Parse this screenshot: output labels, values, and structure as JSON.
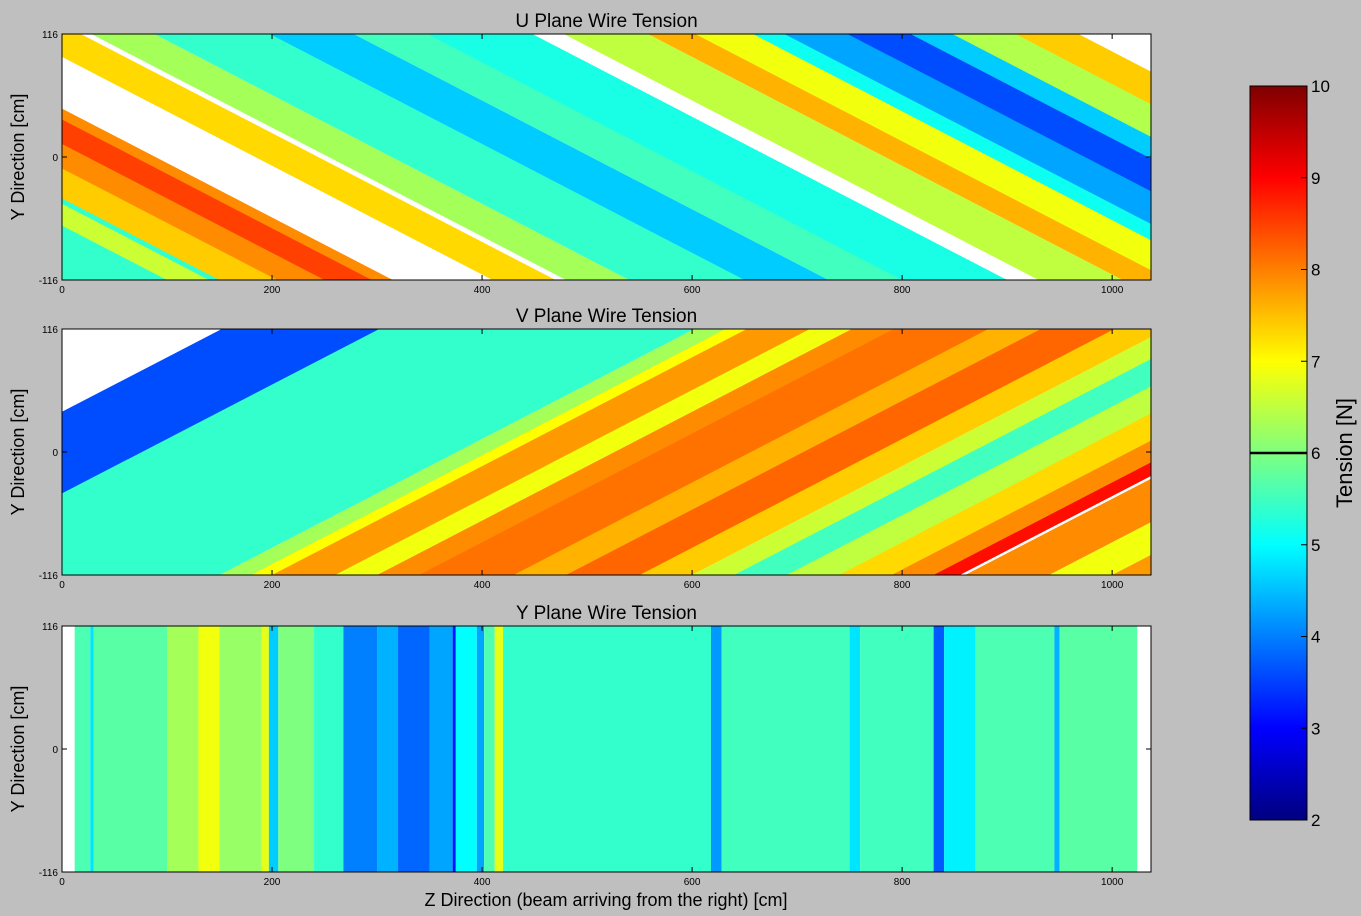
{
  "figure": {
    "xlabel": "Z Direction (beam arriving from the right) [cm]",
    "colorbar": {
      "label": "Tension [N]",
      "min": 2,
      "max": 10,
      "ticks": [
        2,
        3,
        4,
        5,
        6,
        7,
        8,
        9,
        10
      ],
      "marker_value": 6,
      "colormap": "jet",
      "colors": {
        "jet": [
          "#00007f",
          "#0000ff",
          "#007fff",
          "#00ffff",
          "#7fff7f",
          "#ffff00",
          "#ff7f00",
          "#ff0000",
          "#7f0000"
        ]
      }
    }
  },
  "chart_data": [
    {
      "type": "heatmap",
      "title": "U Plane Wire Tension",
      "xlabel": "",
      "ylabel": "Y Direction [cm]",
      "xlim": [
        0,
        1037
      ],
      "ylim": [
        -116,
        116
      ],
      "xticks": [
        0,
        200,
        400,
        600,
        800,
        1000
      ],
      "yticks": [
        -116,
        0,
        116
      ],
      "wire_orientation": "diagonal, +60 degrees",
      "wire_extent_z": [
        0,
        1037
      ],
      "bands": [
        {
          "z_at_y_min": -210,
          "width_cm": 14,
          "value": 3.9
        },
        {
          "z_at_y_min": -150,
          "width_cm": 340,
          "value": 5.4
        },
        {
          "z_at_y_min": 100,
          "width_cm": 40,
          "value": 6.6
        },
        {
          "z_at_y_min": 150,
          "width_cm": 60,
          "value": 7.4
        },
        {
          "z_at_y_min": 205,
          "width_cm": 110,
          "value": 7.9
        },
        {
          "z_at_y_min": 250,
          "width_cm": 45,
          "value": 8.5
        },
        {
          "z_at_y_min": 410,
          "width_cm": 60,
          "value": 7.3
        },
        {
          "z_at_y_min": 480,
          "width_cm": 60,
          "value": 6.3
        },
        {
          "z_at_y_min": 540,
          "width_cm": 130,
          "value": 5.4
        },
        {
          "z_at_y_min": 650,
          "width_cm": 80,
          "value": 4.6
        },
        {
          "z_at_y_min": 730,
          "width_cm": 90,
          "value": 5.5
        },
        {
          "z_at_y_min": 800,
          "width_cm": 100,
          "value": 5.2
        },
        {
          "z_at_y_min": 930,
          "width_cm": 80,
          "value": 6.5
        },
        {
          "z_at_y_min": 1010,
          "width_cm": 60,
          "value": 7.6
        },
        {
          "z_at_y_min": 1055,
          "width_cm": 70,
          "value": 6.9
        },
        {
          "z_at_y_min": 1110,
          "width_cm": 40,
          "value": 5.1
        },
        {
          "z_at_y_min": 1140,
          "width_cm": 90,
          "value": 4.3
        },
        {
          "z_at_y_min": 1200,
          "width_cm": 80,
          "value": 3.6
        },
        {
          "z_at_y_min": 1260,
          "width_cm": 60,
          "value": 4.6
        },
        {
          "z_at_y_min": 1300,
          "width_cm": 80,
          "value": 6.4
        },
        {
          "z_at_y_min": 1360,
          "width_cm": 60,
          "value": 7.4
        }
      ]
    },
    {
      "type": "heatmap",
      "title": "V Plane Wire Tension",
      "xlabel": "",
      "ylabel": "Y Direction [cm]",
      "xlim": [
        0,
        1037
      ],
      "ylim": [
        -116,
        116
      ],
      "xticks": [
        0,
        200,
        400,
        600,
        800,
        1000
      ],
      "yticks": [
        -116,
        0,
        116
      ],
      "wire_orientation": "diagonal, -60 degrees",
      "wire_extent_z": [
        0,
        1037
      ],
      "bands": [
        {
          "z_at_y_min": -300,
          "width_cm": 210,
          "value": 3.6
        },
        {
          "z_at_y_min": -150,
          "width_cm": 300,
          "value": 5.4
        },
        {
          "z_at_y_min": 150,
          "width_cm": 40,
          "value": 6.3
        },
        {
          "z_at_y_min": 180,
          "width_cm": 30,
          "value": 7.0
        },
        {
          "z_at_y_min": 200,
          "width_cm": 90,
          "value": 7.8
        },
        {
          "z_at_y_min": 260,
          "width_cm": 40,
          "value": 6.9
        },
        {
          "z_at_y_min": 300,
          "width_cm": 50,
          "value": 7.9
        },
        {
          "z_at_y_min": 340,
          "width_cm": 110,
          "value": 8.1
        },
        {
          "z_at_y_min": 430,
          "width_cm": 60,
          "value": 7.6
        },
        {
          "z_at_y_min": 480,
          "width_cm": 80,
          "value": 8.2
        },
        {
          "z_at_y_min": 550,
          "width_cm": 50,
          "value": 7.4
        },
        {
          "z_at_y_min": 600,
          "width_cm": 50,
          "value": 6.6
        },
        {
          "z_at_y_min": 640,
          "width_cm": 60,
          "value": 5.5
        },
        {
          "z_at_y_min": 690,
          "width_cm": 70,
          "value": 6.5
        },
        {
          "z_at_y_min": 740,
          "width_cm": 60,
          "value": 7.3
        },
        {
          "z_at_y_min": 790,
          "width_cm": 60,
          "value": 7.9
        },
        {
          "z_at_y_min": 830,
          "width_cm": 25,
          "value": 8.9
        },
        {
          "z_at_y_min": 860,
          "width_cm": 80,
          "value": 7.9
        },
        {
          "z_at_y_min": 940,
          "width_cm": 60,
          "value": 6.9
        },
        {
          "z_at_y_min": 1000,
          "width_cm": 60,
          "value": 7.8
        },
        {
          "z_at_y_min": 1040,
          "width_cm": 50,
          "value": 5.6
        }
      ]
    },
    {
      "type": "heatmap",
      "title": "Y Plane Wire Tension",
      "xlabel": "Z Direction (beam arriving from the right) [cm]",
      "ylabel": "Y Direction [cm]",
      "xlim": [
        0,
        1037
      ],
      "ylim": [
        -116,
        116
      ],
      "xticks": [
        0,
        200,
        400,
        600,
        800,
        1000
      ],
      "yticks": [
        -116,
        0,
        116
      ],
      "wire_orientation": "vertical",
      "wire_extent_z": [
        12,
        1024
      ],
      "bands": [
        {
          "z_start": 12,
          "z_end": 27,
          "value": 5.6
        },
        {
          "z_start": 27,
          "z_end": 30,
          "value": 4.8
        },
        {
          "z_start": 30,
          "z_end": 100,
          "value": 5.7
        },
        {
          "z_start": 100,
          "z_end": 130,
          "value": 6.3
        },
        {
          "z_start": 130,
          "z_end": 150,
          "value": 6.9
        },
        {
          "z_start": 150,
          "z_end": 190,
          "value": 6.2
        },
        {
          "z_start": 190,
          "z_end": 197,
          "value": 6.8
        },
        {
          "z_start": 197,
          "z_end": 206,
          "value": 4.6
        },
        {
          "z_start": 206,
          "z_end": 240,
          "value": 6.0
        },
        {
          "z_start": 240,
          "z_end": 268,
          "value": 5.4
        },
        {
          "z_start": 268,
          "z_end": 300,
          "value": 4.0
        },
        {
          "z_start": 300,
          "z_end": 320,
          "value": 4.4
        },
        {
          "z_start": 320,
          "z_end": 350,
          "value": 3.8
        },
        {
          "z_start": 350,
          "z_end": 372,
          "value": 4.3
        },
        {
          "z_start": 372,
          "z_end": 375,
          "value": 3.2
        },
        {
          "z_start": 375,
          "z_end": 395,
          "value": 5.0
        },
        {
          "z_start": 395,
          "z_end": 402,
          "value": 4.3
        },
        {
          "z_start": 402,
          "z_end": 412,
          "value": 5.6
        },
        {
          "z_start": 412,
          "z_end": 420,
          "value": 6.8
        },
        {
          "z_start": 420,
          "z_end": 618,
          "value": 5.4
        },
        {
          "z_start": 618,
          "z_end": 628,
          "value": 4.2
        },
        {
          "z_start": 628,
          "z_end": 750,
          "value": 5.5
        },
        {
          "z_start": 750,
          "z_end": 760,
          "value": 4.8
        },
        {
          "z_start": 760,
          "z_end": 830,
          "value": 5.5
        },
        {
          "z_start": 830,
          "z_end": 840,
          "value": 3.7
        },
        {
          "z_start": 840,
          "z_end": 870,
          "value": 4.9
        },
        {
          "z_start": 870,
          "z_end": 945,
          "value": 5.6
        },
        {
          "z_start": 945,
          "z_end": 950,
          "value": 4.4
        },
        {
          "z_start": 950,
          "z_end": 1024,
          "value": 5.7
        }
      ]
    }
  ]
}
